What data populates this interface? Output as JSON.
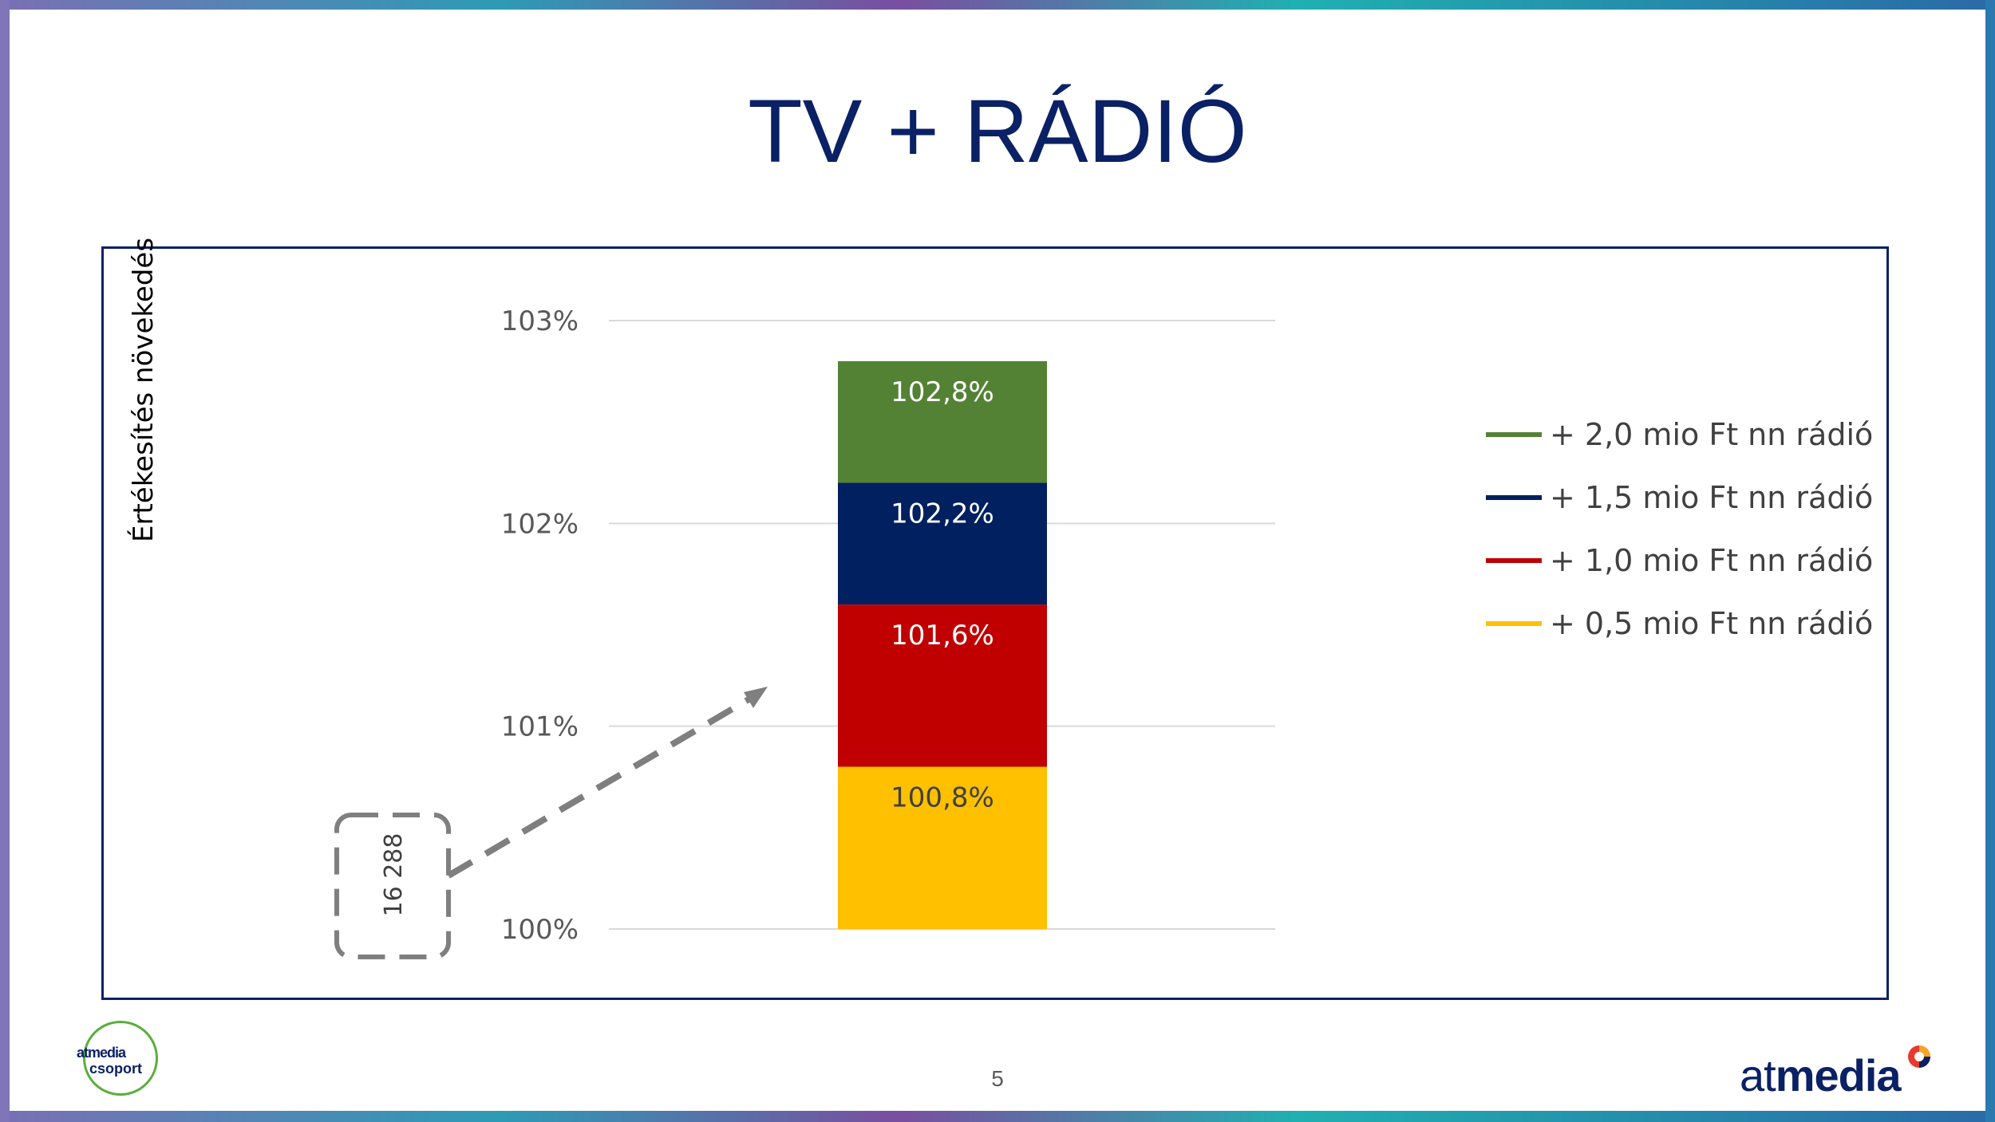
{
  "title": "TV + RÁDIÓ",
  "page_number": "5",
  "logos": {
    "left_line1": "atmedia",
    "left_line2": "csoport",
    "right_text_light": "at",
    "right_text_bold": "media"
  },
  "callout": {
    "value": "16 288"
  },
  "colors": {
    "title": "#0b2165",
    "green": "#548235",
    "navy": "#002060",
    "red": "#c00000",
    "yellow": "#ffc000",
    "grid": "#d9d9d9",
    "callout": "#7f7f7f"
  },
  "chart_data": {
    "type": "bar",
    "stacked": true,
    "ylabel": "Értékesítés növekedés",
    "ylim": [
      1.0,
      1.03
    ],
    "yticks": [
      "100%",
      "101%",
      "102%",
      "103%"
    ],
    "grid": true,
    "legend_position": "right",
    "categories": [
      ""
    ],
    "series": [
      {
        "name": "+ 0,5 mio Ft nn rádió",
        "value": 1.008,
        "label": "100,8%",
        "color": "#ffc000",
        "label_color": "#404040"
      },
      {
        "name": "+ 1,0 mio Ft nn rádió",
        "value": 1.016,
        "label": "101,6%",
        "color": "#c00000",
        "label_color": "#ffffff"
      },
      {
        "name": "+ 1,5 mio Ft nn rádió",
        "value": 1.022,
        "label": "102,2%",
        "color": "#002060",
        "label_color": "#ffffff"
      },
      {
        "name": "+ 2,0 mio Ft nn rádió",
        "value": 1.028,
        "label": "102,8%",
        "color": "#548235",
        "label_color": "#ffffff"
      }
    ]
  }
}
